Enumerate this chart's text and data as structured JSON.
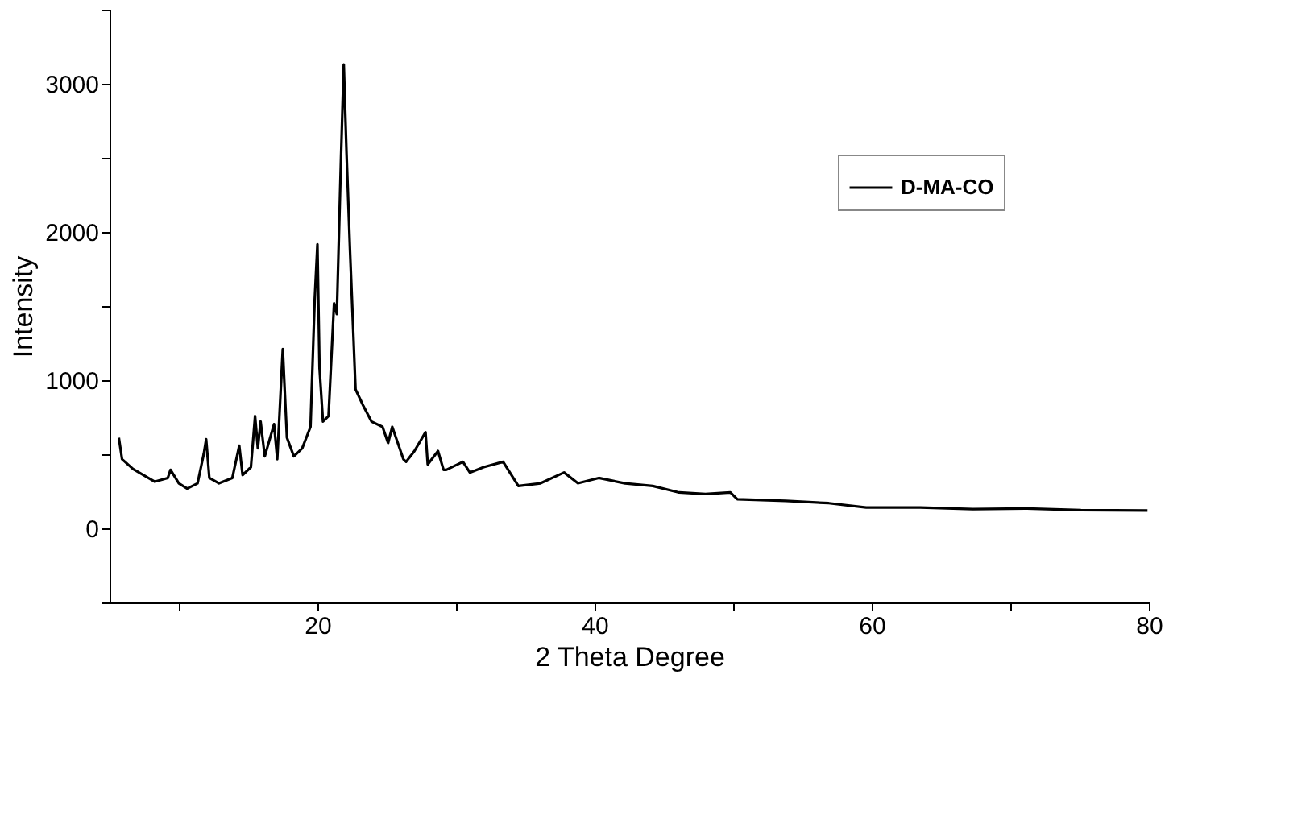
{
  "chart_data": {
    "type": "line",
    "xlabel": "2 Theta Degree",
    "ylabel": "Intensity",
    "xlim": [
      5,
      80
    ],
    "ylim": [
      -500,
      3500
    ],
    "xticks": [
      {
        "value": 10,
        "label": null
      },
      20,
      {
        "value": 30,
        "label": null
      },
      40,
      {
        "value": 50,
        "label": null
      },
      60,
      {
        "value": 70,
        "label": null
      },
      80
    ],
    "yticks": [
      {
        "value": -500,
        "label": null
      },
      0,
      {
        "value": 500,
        "label": null
      },
      1000,
      {
        "value": 1500,
        "label": null
      },
      2000,
      {
        "value": 2500,
        "label": null
      },
      3000,
      {
        "value": 3500,
        "label": null
      }
    ],
    "grid": false,
    "legend": "top right",
    "marker": "none",
    "line_style": "solid",
    "series": [
      {
        "name": "D-MA-CO",
        "color": "#000000",
        "x": [
          5.67,
          5.9,
          6.7,
          8.27,
          9.2,
          9.4,
          10.0,
          10.6,
          11.35,
          11.8,
          11.97,
          12.2,
          12.9,
          13.86,
          14.36,
          14.6,
          15.2,
          15.5,
          15.7,
          15.9,
          16.2,
          16.87,
          17.1,
          17.5,
          17.8,
          18.3,
          18.9,
          19.5,
          19.8,
          20.0,
          20.15,
          20.4,
          20.8,
          21.2,
          21.4,
          21.7,
          21.9,
          22.1,
          22.35,
          22.75,
          23.3,
          23.9,
          24.7,
          25.1,
          25.4,
          26.2,
          26.4,
          27.0,
          27.8,
          27.96,
          28.7,
          29.1,
          29.3,
          30.5,
          31.0,
          32.0,
          33.4,
          34.5,
          36.1,
          37.8,
          38.8,
          40.3,
          42.2,
          44.2,
          46.1,
          48.0,
          49.8,
          50.3,
          53.8,
          56.9,
          59.6,
          63.5,
          67.3,
          71.2,
          75.1,
          79.9
        ],
        "values": [
          612,
          467,
          400,
          315,
          340,
          395,
          304,
          268,
          304,
          503,
          601,
          340,
          304,
          340,
          558,
          359,
          413,
          757,
          540,
          721,
          486,
          703,
          467,
          1210,
          612,
          486,
          540,
          685,
          1536,
          1917,
          1083,
          721,
          757,
          1518,
          1446,
          2496,
          3130,
          2533,
          1880,
          938,
          829,
          721,
          685,
          576,
          685,
          467,
          449,
          522,
          649,
          431,
          522,
          395,
          395,
          449,
          377,
          413,
          449,
          286,
          304,
          377,
          304,
          340,
          304,
          286,
          242,
          232,
          242,
          196,
          185,
          170,
          141,
          141,
          130,
          134,
          123,
          120
        ]
      }
    ]
  }
}
